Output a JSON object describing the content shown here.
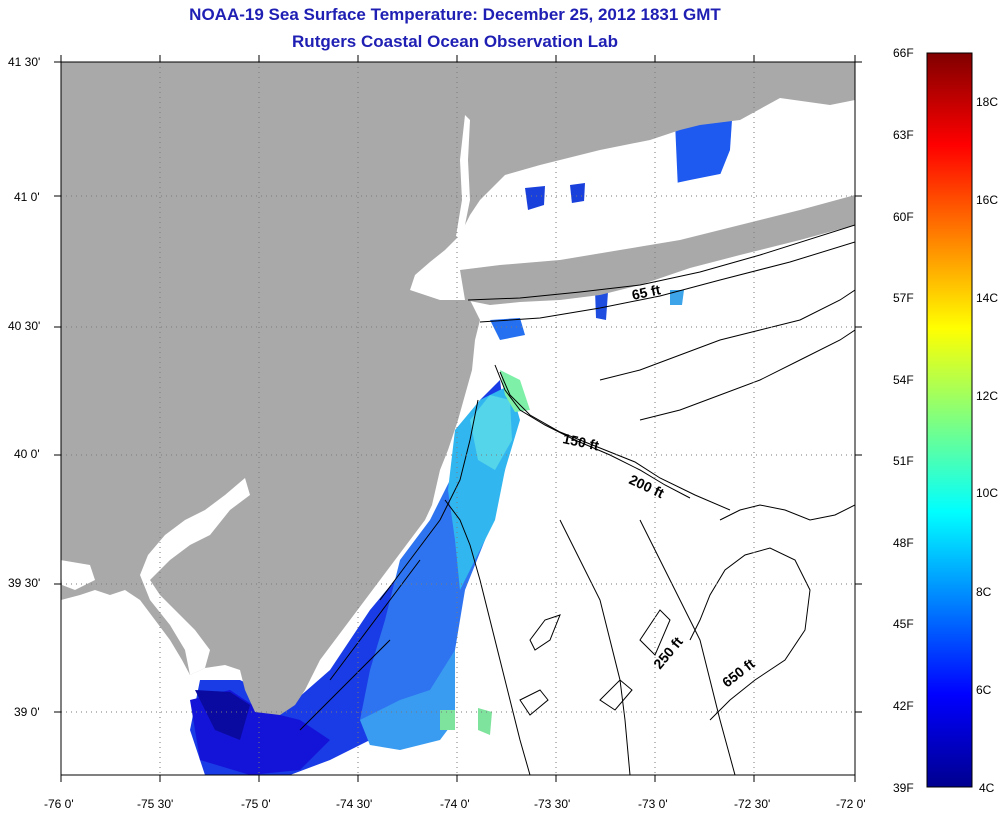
{
  "title_line1": "NOAA-19 Sea Surface Temperature:  December 25, 2012 1831 GMT",
  "title_line2": "Rutgers Coastal Ocean Observation Lab",
  "lat_ticks": [
    "41 30'",
    "41 0'",
    "40 30'",
    "40 0'",
    "39 30'",
    "39 0'"
  ],
  "lon_ticks": [
    "-76 0'",
    "-75 30'",
    "-75 0'",
    "-74 30'",
    "-74 0'",
    "-73 30'",
    "-73 0'",
    "-72 30'",
    "-72 0'"
  ],
  "depth_labels": [
    "65 ft",
    "150 ft",
    "200 ft",
    "250 ft",
    "650 ft"
  ],
  "colorbar": {
    "f_labels": [
      "66F",
      "63F",
      "60F",
      "57F",
      "54F",
      "51F",
      "48F",
      "45F",
      "42F",
      "39F"
    ],
    "c_labels": [
      "18C",
      "16C",
      "14C",
      "12C",
      "10C",
      "8C",
      "6C",
      "4C"
    ],
    "min_f": 39,
    "max_f": 66
  },
  "colors": {
    "land": "#a9a9a9",
    "title": "#1f1fb4"
  }
}
